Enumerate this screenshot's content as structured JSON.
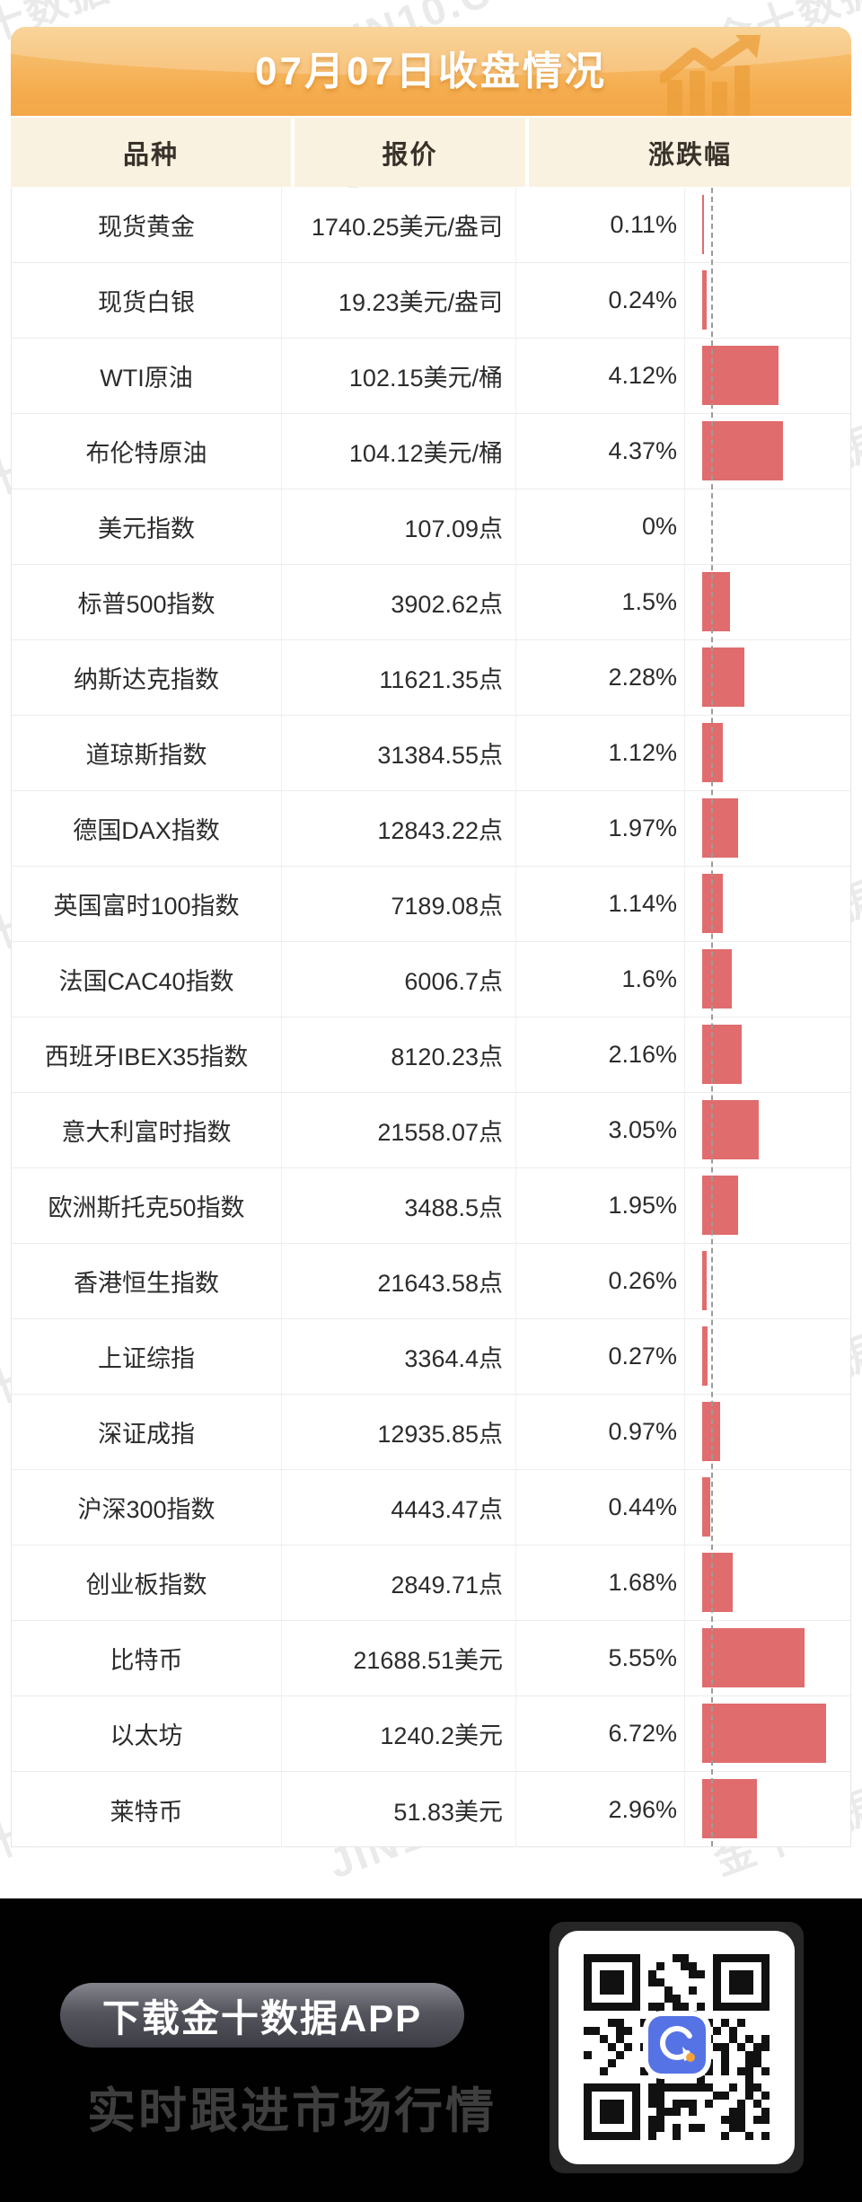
{
  "banner": {
    "title": "07月07日收盘情况"
  },
  "watermark": {
    "texts": [
      "金十数据",
      "JIN10.COM"
    ]
  },
  "table": {
    "headers": [
      "品种",
      "报价",
      "涨跌幅"
    ],
    "rows": [
      {
        "name": "现货黄金",
        "price": "1740.25美元/盎司",
        "change": "0.11%",
        "pct": 0.11
      },
      {
        "name": "现货白银",
        "price": "19.23美元/盎司",
        "change": "0.24%",
        "pct": 0.24
      },
      {
        "name": "WTI原油",
        "price": "102.15美元/桶",
        "change": "4.12%",
        "pct": 4.12
      },
      {
        "name": "布伦特原油",
        "price": "104.12美元/桶",
        "change": "4.37%",
        "pct": 4.37
      },
      {
        "name": "美元指数",
        "price": "107.09点",
        "change": "0%",
        "pct": 0
      },
      {
        "name": "标普500指数",
        "price": "3902.62点",
        "change": "1.5%",
        "pct": 1.5
      },
      {
        "name": "纳斯达克指数",
        "price": "11621.35点",
        "change": "2.28%",
        "pct": 2.28
      },
      {
        "name": "道琼斯指数",
        "price": "31384.55点",
        "change": "1.12%",
        "pct": 1.12
      },
      {
        "name": "德国DAX指数",
        "price": "12843.22点",
        "change": "1.97%",
        "pct": 1.97
      },
      {
        "name": "英国富时100指数",
        "price": "7189.08点",
        "change": "1.14%",
        "pct": 1.14
      },
      {
        "name": "法国CAC40指数",
        "price": "6006.7点",
        "change": "1.6%",
        "pct": 1.6
      },
      {
        "name": "西班牙IBEX35指数",
        "price": "8120.23点",
        "change": "2.16%",
        "pct": 2.16
      },
      {
        "name": "意大利富时指数",
        "price": "21558.07点",
        "change": "3.05%",
        "pct": 3.05
      },
      {
        "name": "欧洲斯托克50指数",
        "price": "3488.5点",
        "change": "1.95%",
        "pct": 1.95
      },
      {
        "name": "香港恒生指数",
        "price": "21643.58点",
        "change": "0.26%",
        "pct": 0.26
      },
      {
        "name": "上证综指",
        "price": "3364.4点",
        "change": "0.27%",
        "pct": 0.27
      },
      {
        "name": "深证成指",
        "price": "12935.85点",
        "change": "0.97%",
        "pct": 0.97
      },
      {
        "name": "沪深300指数",
        "price": "4443.47点",
        "change": "0.44%",
        "pct": 0.44
      },
      {
        "name": "创业板指数",
        "price": "2849.71点",
        "change": "1.68%",
        "pct": 1.68
      },
      {
        "name": "比特币",
        "price": "21688.51美元",
        "change": "5.55%",
        "pct": 5.55
      },
      {
        "name": "以太坊",
        "price": "1240.2美元",
        "change": "6.72%",
        "pct": 6.72
      },
      {
        "name": "莱特币",
        "price": "51.83美元",
        "change": "2.96%",
        "pct": 2.96
      }
    ]
  },
  "chart_data": {
    "type": "bar",
    "orientation": "horizontal",
    "title": "07月07日收盘情况",
    "categories": [
      "现货黄金",
      "现货白银",
      "WTI原油",
      "布伦特原油",
      "美元指数",
      "标普500指数",
      "纳斯达克指数",
      "道琼斯指数",
      "德国DAX指数",
      "英国富时100指数",
      "法国CAC40指数",
      "西班牙IBEX35指数",
      "意大利富时指数",
      "欧洲斯托克50指数",
      "香港恒生指数",
      "上证综指",
      "深证成指",
      "沪深300指数",
      "创业板指数",
      "比特币",
      "以太坊",
      "莱特币"
    ],
    "values": [
      0.11,
      0.24,
      4.12,
      4.37,
      0,
      1.5,
      2.28,
      1.12,
      1.97,
      1.14,
      1.6,
      2.16,
      3.05,
      1.95,
      0.26,
      0.27,
      0.97,
      0.44,
      1.68,
      5.55,
      6.72,
      2.96
    ],
    "unit": "%",
    "xlabel": "涨跌幅",
    "xlim": [
      0,
      7.2
    ],
    "bar_color": "#e06c6e",
    "baseline_style": "gray-dashed",
    "legend": "none",
    "grid": "off"
  },
  "footer": {
    "button_label": "下载金十数据APP",
    "slogan": "实时跟进市场行情"
  },
  "colors": {
    "banner_orange_top": "#f8c87e",
    "banner_orange_bottom": "#f3a748",
    "header_cream": "#faf2e0",
    "bar_salmon": "#e06c6e",
    "footer_black": "#010101",
    "app_icon_blue": "#5673e5"
  }
}
